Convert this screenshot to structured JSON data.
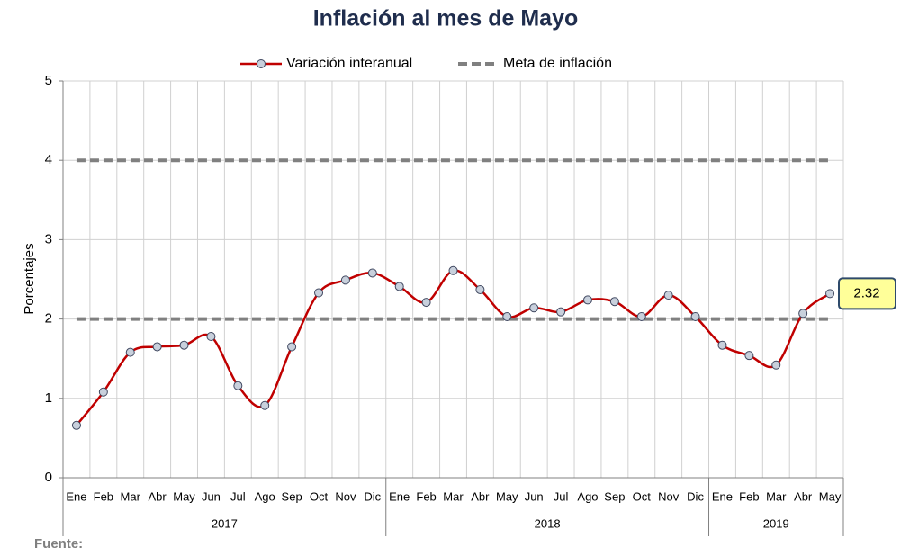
{
  "chart_data": {
    "type": "line",
    "title": "Inflación al mes de Mayo",
    "ylabel": "Porcentajes",
    "groups": [
      {
        "label": "2017",
        "categories": [
          "Ene",
          "Feb",
          "Mar",
          "Abr",
          "May",
          "Jun",
          "Jul",
          "Ago",
          "Sep",
          "Oct",
          "Nov",
          "Dic"
        ]
      },
      {
        "label": "2018",
        "categories": [
          "Ene",
          "Feb",
          "Mar",
          "Abr",
          "May",
          "Jun",
          "Jul",
          "Ago",
          "Sep",
          "Oct",
          "Nov",
          "Dic"
        ]
      },
      {
        "label": "2019",
        "categories": [
          "Ene",
          "Feb",
          "Mar",
          "Abr",
          "May"
        ]
      }
    ],
    "series": [
      {
        "name": "Variación interanual",
        "color": "#c00000",
        "values": [
          0.66,
          1.08,
          1.58,
          1.65,
          1.67,
          1.78,
          1.16,
          0.91,
          1.65,
          2.33,
          2.49,
          2.58,
          2.41,
          2.21,
          2.61,
          2.37,
          2.03,
          2.14,
          2.09,
          2.24,
          2.22,
          2.03,
          2.3,
          2.03,
          1.67,
          1.54,
          1.42,
          2.07,
          2.32
        ]
      }
    ],
    "target": {
      "name": "Meta de inflación",
      "color": "#808080",
      "values": [
        2,
        4
      ]
    },
    "annotation": "2.32",
    "ylim": [
      0,
      5
    ],
    "yticks": [
      0,
      1,
      2,
      3,
      4,
      5
    ],
    "grid": true,
    "source": "Fuente:"
  }
}
